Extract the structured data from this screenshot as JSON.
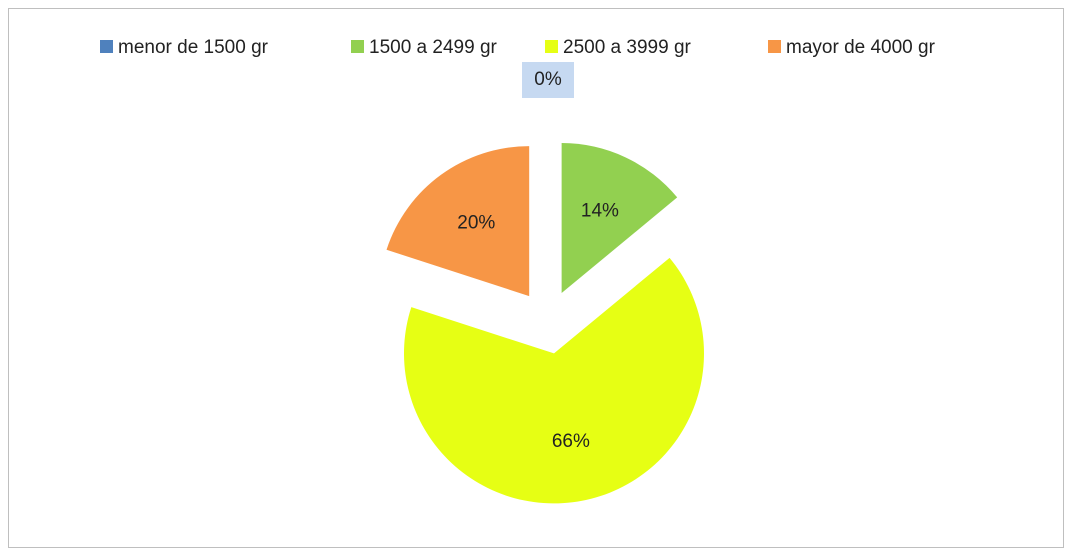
{
  "chart_data": {
    "type": "pie",
    "categories": [
      "menor de 1500 gr",
      "1500 a 2499 gr",
      "2500 a 3999 gr",
      "mayor de 4000 gr"
    ],
    "values": [
      0,
      14,
      66,
      20
    ],
    "value_labels": [
      "0%",
      "14%",
      "66%",
      "20%"
    ],
    "colors": [
      "#4f81bd",
      "#92d050",
      "#e6ff14",
      "#f79646"
    ],
    "legend": "top",
    "exploded": true
  }
}
